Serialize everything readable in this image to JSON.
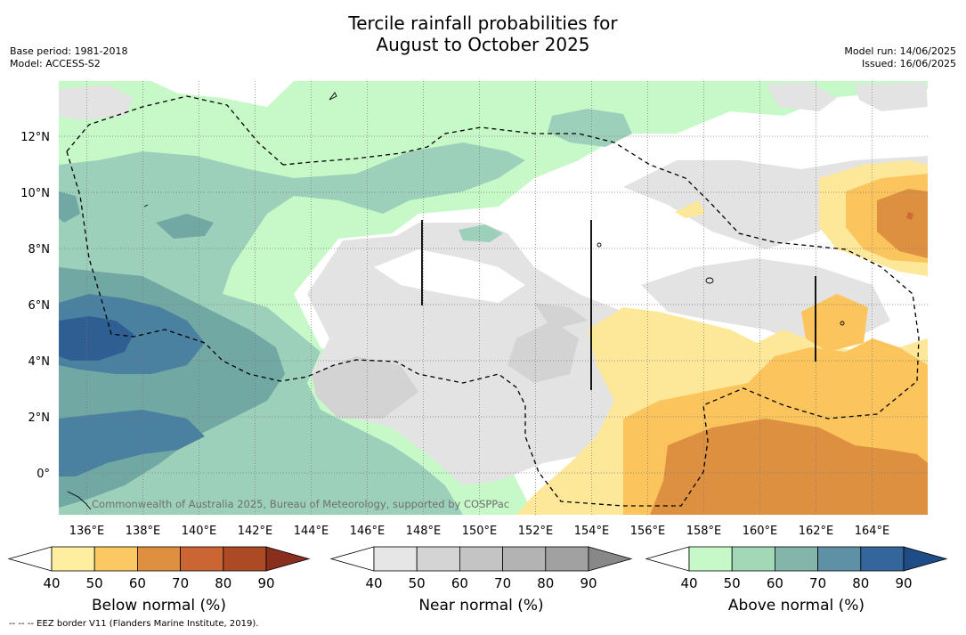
{
  "title": {
    "line1": "Tercile rainfall probabilities for",
    "line2": "August to October 2025"
  },
  "meta": {
    "base_period": "Base period: 1981-2018",
    "model": "Model: ACCESS-S2",
    "model_run": "Model run: 14/06/2025",
    "issued": "Issued: 16/06/2025"
  },
  "map": {
    "lat_labels": [
      "12°N",
      "10°N",
      "8°N",
      "6°N",
      "4°N",
      "2°N",
      "0°"
    ],
    "lat_values": [
      12,
      10,
      8,
      6,
      4,
      2,
      0
    ],
    "lon_labels": [
      "136°E",
      "138°E",
      "140°E",
      "142°E",
      "144°E",
      "146°E",
      "148°E",
      "150°E",
      "152°E",
      "154°E",
      "156°E",
      "158°E",
      "160°E",
      "162°E",
      "164°E"
    ],
    "lon_values": [
      136,
      138,
      140,
      142,
      144,
      146,
      148,
      150,
      152,
      154,
      156,
      158,
      160,
      162,
      164
    ],
    "attribution": "Commonwealth of Australia 2025, Bureau of Meteorology, supported by COSPPac"
  },
  "colorbars": [
    {
      "id": "below",
      "label": "Below normal (%)",
      "ticks": [
        "40",
        "50",
        "60",
        "70",
        "80",
        "90"
      ],
      "colors": [
        "#ffffff",
        "#fdeea0",
        "#fbc864",
        "#de9040",
        "#cb6534",
        "#ac4a25",
        "#8a2e1e"
      ]
    },
    {
      "id": "near",
      "label": "Near normal (%)",
      "ticks": [
        "40",
        "50",
        "60",
        "70",
        "80",
        "90"
      ],
      "colors": [
        "#ffffff",
        "#e6e6e6",
        "#d4d4d4",
        "#c4c4c4",
        "#b3b3b3",
        "#a1a1a1",
        "#888888"
      ]
    },
    {
      "id": "above",
      "label": "Above normal (%)",
      "ticks": [
        "40",
        "50",
        "60",
        "70",
        "80",
        "90"
      ],
      "colors": [
        "#ffffff",
        "#c7f9c8",
        "#a3d8b6",
        "#84b5aa",
        "#5f91a6",
        "#34659b",
        "#1d4c86"
      ]
    }
  ],
  "footnote": "--  --  -- EEZ border V11 (Flanders Marine Institute, 2019).",
  "palette": {
    "above_50": "#c7f9c8",
    "above_60": "#9dd0bb",
    "above_70": "#72a8a4",
    "above_80": "#4a80a0",
    "above_90": "#2f5f92",
    "near_50": "#e3e3e3",
    "near_60": "#d3d3d3",
    "below_50": "#fde89a",
    "below_60": "#fbc45c",
    "below_70": "#dd9140",
    "below_80": "#cf6a35"
  }
}
